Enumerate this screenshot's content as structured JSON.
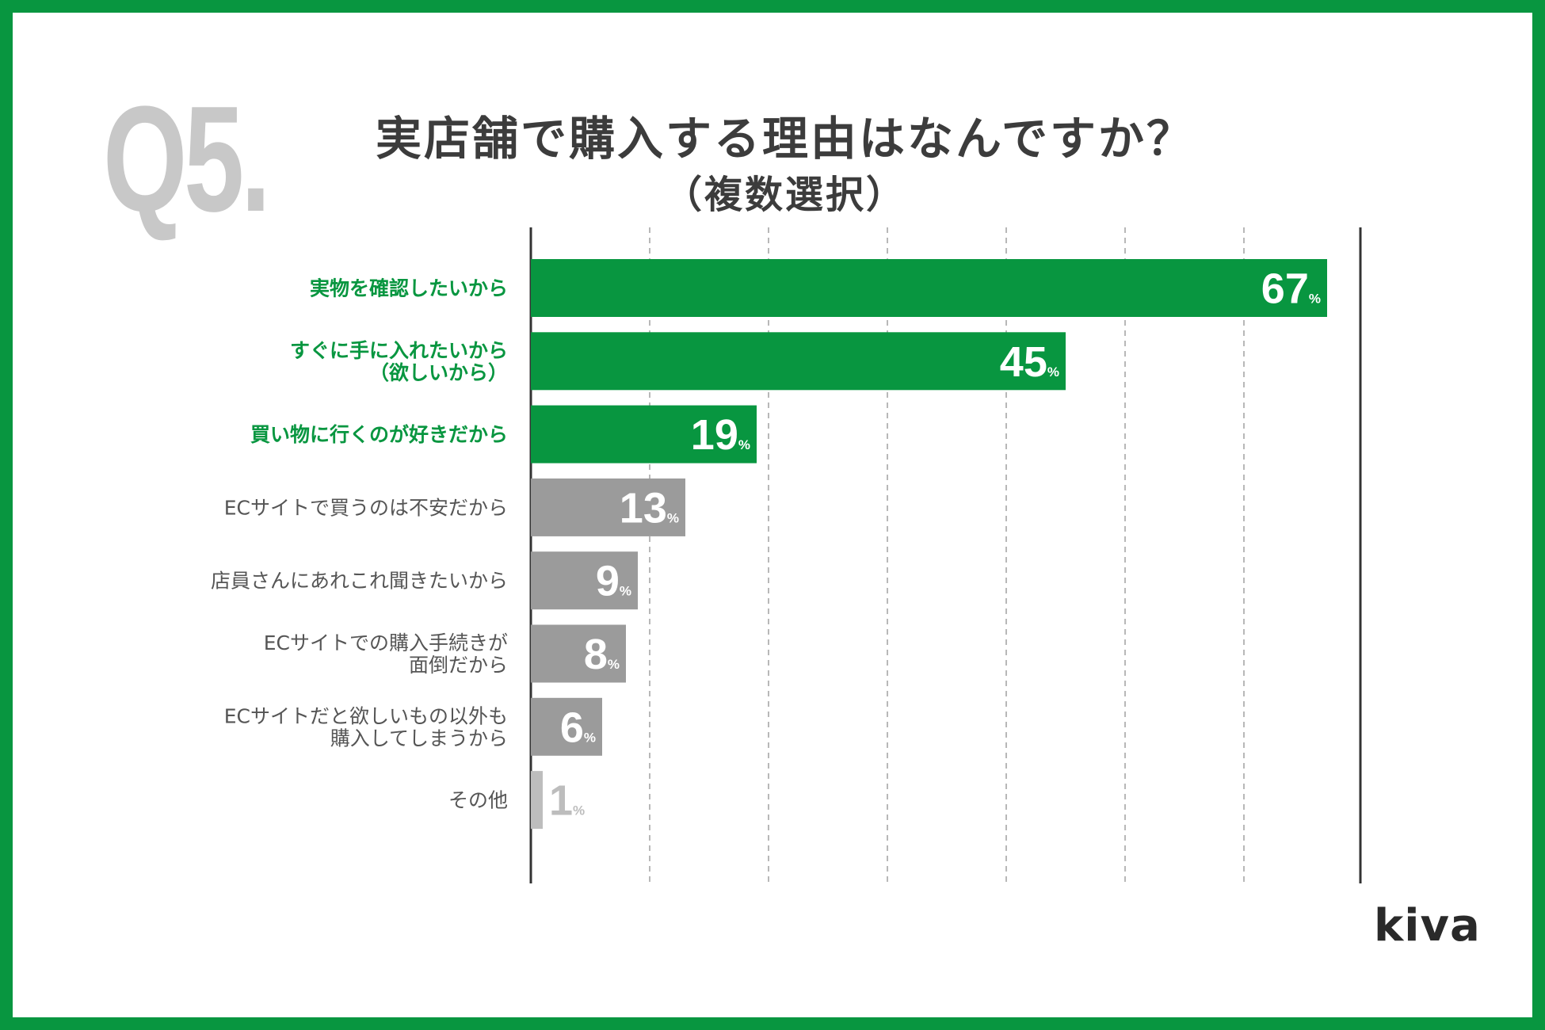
{
  "header": {
    "question_number": "Q5.",
    "title_line1": "実店舗で購入する理由はなんですか？",
    "title_line2": "（複数選択）"
  },
  "brand": {
    "logo_text": "kiva"
  },
  "colors": {
    "frame": "#089640",
    "highlight": "#089640",
    "normal": "#9b9b9b",
    "low": "#bdbdbd",
    "label_normal": "#555555",
    "axis": "#333333",
    "grid": "#b8b8b8"
  },
  "chart_data": {
    "type": "bar",
    "orientation": "horizontal",
    "title": "実店舗で購入する理由はなんですか？（複数選択）",
    "xlim": [
      0,
      70
    ],
    "grid_step": 10,
    "grid": "dashed vertical",
    "value_suffix": "%",
    "categories": [
      {
        "lines": [
          "実物を確認したいから"
        ],
        "value": 67,
        "highlight": true
      },
      {
        "lines": [
          "すぐに手に入れたいから",
          "（欲しいから）"
        ],
        "value": 45,
        "highlight": true
      },
      {
        "lines": [
          "買い物に行くのが好きだから"
        ],
        "value": 19,
        "highlight": true
      },
      {
        "lines": [
          "ECサイトで買うのは不安だから"
        ],
        "value": 13,
        "highlight": false
      },
      {
        "lines": [
          "店員さんにあれこれ聞きたいから"
        ],
        "value": 9,
        "highlight": false
      },
      {
        "lines": [
          "ECサイトでの購入手続きが",
          "面倒だから"
        ],
        "value": 8,
        "highlight": false
      },
      {
        "lines": [
          "ECサイトだと欲しいもの以外も",
          "購入してしまうから"
        ],
        "value": 6,
        "highlight": false
      },
      {
        "lines": [
          "その他"
        ],
        "value": 1,
        "highlight": false
      }
    ]
  }
}
